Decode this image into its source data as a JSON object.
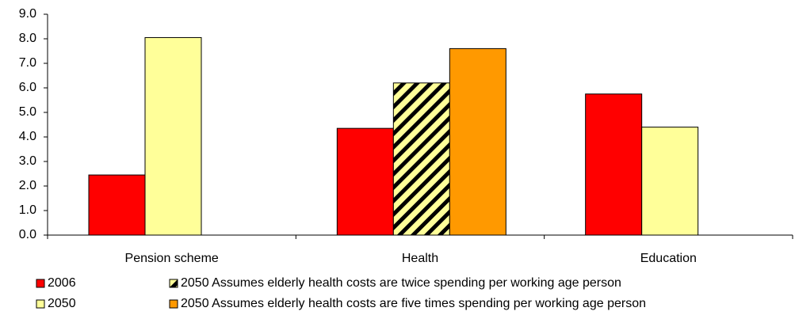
{
  "chart_data": {
    "type": "bar",
    "categories": [
      "Pension scheme",
      "Health",
      "Education"
    ],
    "series": [
      {
        "name": "2006",
        "color": "#ff0000",
        "values": [
          2.45,
          4.35,
          5.75
        ]
      },
      {
        "name": "2050",
        "color": "#ffff99",
        "values": [
          8.05,
          null,
          4.4
        ]
      },
      {
        "name": "2050  Assumes elderly health costs are twice spending per working age person",
        "color": "#ffff99",
        "hatch": true,
        "values": [
          null,
          6.2,
          null
        ]
      },
      {
        "name": "2050 Assumes elderly health costs are five times spending per working age person",
        "color": "#ff9900",
        "values": [
          null,
          7.6,
          null
        ]
      }
    ],
    "ylim": [
      0,
      9
    ],
    "yticks": [
      {
        "value": 0,
        "label": "0.0"
      },
      {
        "value": 1,
        "label": "1.0"
      },
      {
        "value": 2,
        "label": "2.0"
      },
      {
        "value": 3,
        "label": "3.0"
      },
      {
        "value": 4,
        "label": "4.0"
      },
      {
        "value": 5,
        "label": "5.0"
      },
      {
        "value": 6,
        "label": "6.0"
      },
      {
        "value": 7,
        "label": "7.0"
      },
      {
        "value": 8,
        "label": "8.0"
      },
      {
        "value": 9,
        "label": "9.0"
      }
    ],
    "grid": false
  }
}
